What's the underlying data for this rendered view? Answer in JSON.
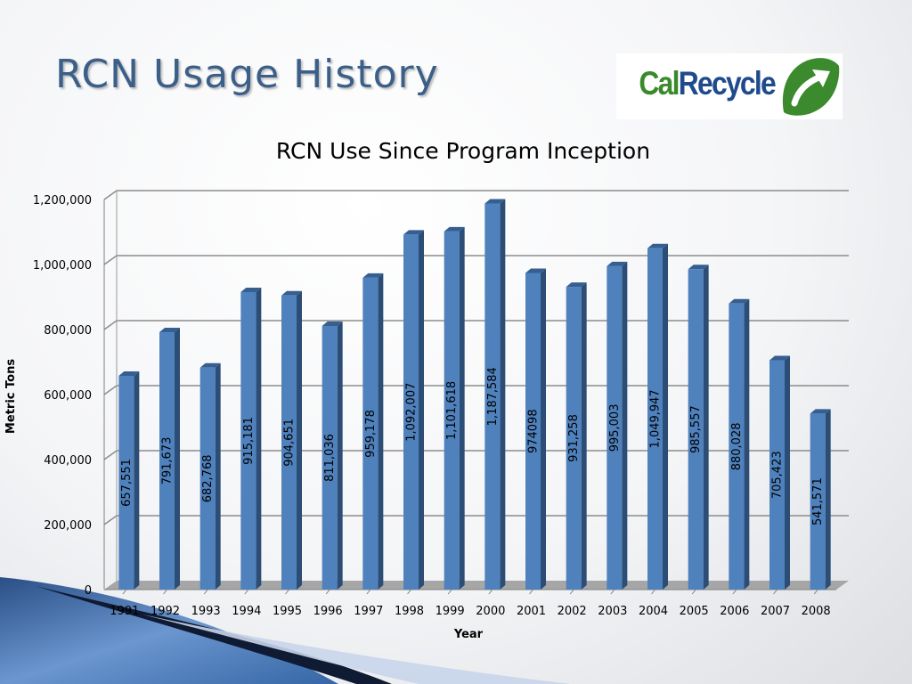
{
  "slide": {
    "title": "RCN Usage History"
  },
  "logo": {
    "text_part1": "Cal",
    "text_part2": "Recycle",
    "cal_color": "#3a8a2c",
    "recycle_color": "#1f4b8c",
    "emblem_color": "#3c8a2e",
    "emblem_icon": "recycle-arrow-icon"
  },
  "chart_data": {
    "type": "bar",
    "title": "RCN Use Since Program Inception",
    "xlabel": "Year",
    "ylabel": "Metric Tons",
    "ylim": [
      0,
      1200000
    ],
    "yticks": [
      0,
      200000,
      400000,
      600000,
      800000,
      1000000,
      1200000
    ],
    "ytick_labels": [
      "0",
      "200,000",
      "400,000",
      "600,000",
      "800,000",
      "1,000,000",
      "1,200,000"
    ],
    "categories": [
      "1991",
      "1992",
      "1993",
      "1994",
      "1995",
      "1996",
      "1997",
      "1998",
      "1999",
      "2000",
      "2001",
      "2002",
      "2003",
      "2004",
      "2005",
      "2006",
      "2007",
      "2008"
    ],
    "values": [
      657551,
      791673,
      682768,
      915181,
      904651,
      811036,
      959178,
      1092007,
      1101618,
      1187584,
      974098,
      931258,
      995003,
      1049947,
      985557,
      880028,
      705423,
      541571
    ],
    "data_labels": [
      "657,551",
      "791,673",
      "682,768",
      "915,181",
      "904,651",
      "811,036",
      "959,178",
      "1,092,007",
      "1,101,618",
      "1,187,584",
      "974098",
      "931,258",
      "995,003",
      "1,049,947",
      "985,557",
      "880,028",
      "705,423",
      "541,571"
    ],
    "bar_color": "#4f81bd",
    "grid": true,
    "legend": "none",
    "style": "3d-column"
  }
}
